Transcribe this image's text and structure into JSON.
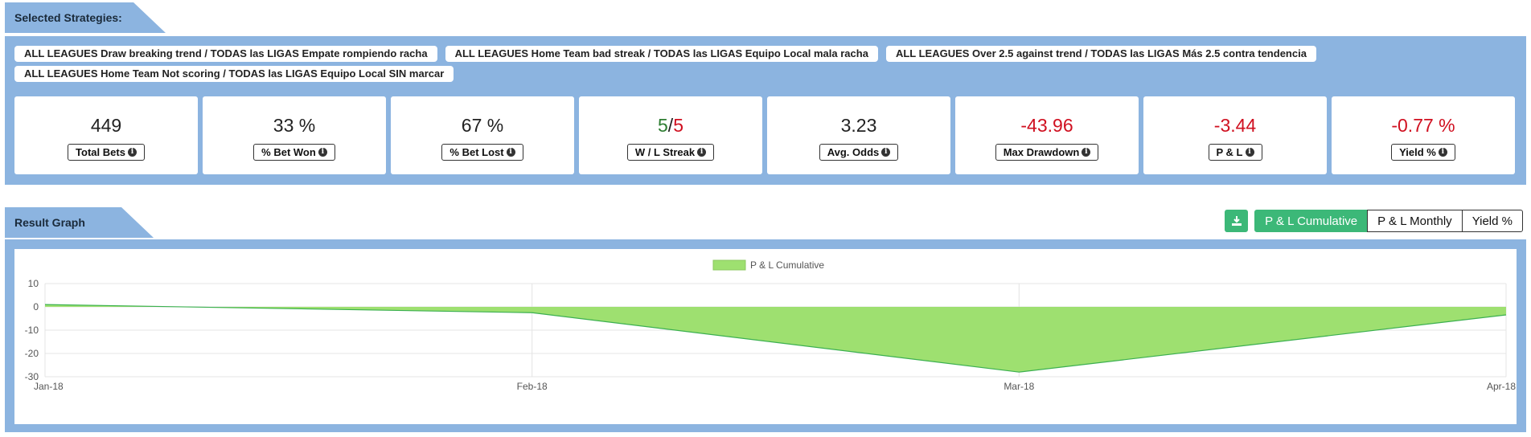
{
  "selected_section": {
    "title": "Selected Strategies:",
    "strategies": [
      "ALL LEAGUES Draw breaking trend / TODAS las LIGAS Empate rompiendo racha",
      "ALL LEAGUES Home Team bad streak / TODAS las LIGAS Equipo Local mala racha",
      "ALL LEAGUES Over 2.5 against trend / TODAS las LIGAS Más 2.5 contra tendencia",
      "ALL LEAGUES Home Team Not scoring / TODAS las LIGAS Equipo Local SIN marcar"
    ]
  },
  "stats": {
    "total_bets": {
      "value": "449",
      "label": "Total Bets"
    },
    "bet_won": {
      "value": "33 %",
      "label": "% Bet Won"
    },
    "bet_lost": {
      "value": "67 %",
      "label": "% Bet Lost"
    },
    "streak": {
      "win": "5",
      "sep": "/",
      "loss": "5",
      "label": "W / L Streak"
    },
    "avg_odds": {
      "value": "3.23",
      "label": "Avg. Odds"
    },
    "max_drawdown": {
      "value": "-43.96",
      "label": "Max Drawdown"
    },
    "pl": {
      "value": "-3.44",
      "label": "P & L"
    },
    "yield": {
      "value": "-0.77 %",
      "label": "Yield %"
    }
  },
  "result_section": {
    "title": "Result Graph",
    "download_icon": "download-icon",
    "buttons": {
      "cumulative": "P & L Cumulative",
      "monthly": "P & L Monthly",
      "yield": "Yield %"
    },
    "active_button": "cumulative"
  },
  "colors": {
    "accent_green": "#3cb878",
    "panel_blue": "#8cb4e0",
    "negative_red": "#d01020",
    "area_fill": "#9ee070",
    "area_stroke": "#3cb050"
  },
  "chart_data": {
    "type": "area",
    "title": "",
    "xlabel": "",
    "ylabel": "",
    "legend": "top-center",
    "grid": true,
    "categories": [
      "Jan-18",
      "Feb-18",
      "Mar-18",
      "Apr-18"
    ],
    "yticks": [
      "10",
      "0",
      "-10",
      "-20",
      "-30"
    ],
    "ylim": [
      -30,
      10
    ],
    "series": [
      {
        "name": "P & L Cumulative",
        "values": [
          1,
          -2.5,
          -28,
          -3.44
        ]
      }
    ]
  }
}
